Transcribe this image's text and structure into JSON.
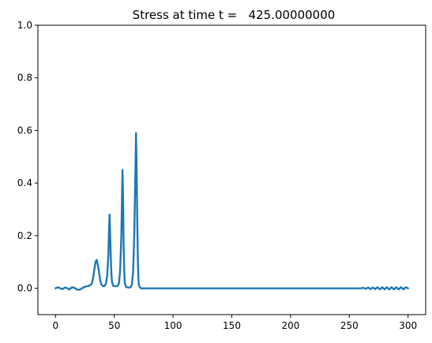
{
  "chart_data": {
    "type": "line",
    "title": "Stress at time t =   425.00000000",
    "xlabel": "",
    "ylabel": "",
    "xlim": [
      -15,
      315
    ],
    "ylim": [
      -0.1,
      1.0
    ],
    "grid": false,
    "x_ticks": [
      {
        "value": 0,
        "label": "0"
      },
      {
        "value": 50,
        "label": "50"
      },
      {
        "value": 100,
        "label": "100"
      },
      {
        "value": 150,
        "label": "150"
      },
      {
        "value": 200,
        "label": "200"
      },
      {
        "value": 250,
        "label": "250"
      },
      {
        "value": 300,
        "label": "300"
      }
    ],
    "y_ticks": [
      {
        "value": 0.0,
        "label": "0.0"
      },
      {
        "value": 0.2,
        "label": "0.2"
      },
      {
        "value": 0.4,
        "label": "0.4"
      },
      {
        "value": 0.6,
        "label": "0.6"
      },
      {
        "value": 0.8,
        "label": "0.8"
      },
      {
        "value": 1.0,
        "label": "1.0"
      }
    ],
    "series": [
      {
        "color": "#1f77b4",
        "x": [
          0,
          2,
          4,
          6,
          8,
          10,
          12,
          14,
          16,
          18,
          20,
          22,
          24,
          26,
          28,
          30,
          31,
          32,
          33,
          34,
          35,
          36,
          37,
          38,
          39,
          40,
          41,
          42,
          43,
          44,
          45,
          45.5,
          46,
          46.5,
          47,
          47.5,
          48,
          49,
          50,
          51,
          52,
          53,
          54,
          55,
          56,
          56.5,
          57,
          57.5,
          58,
          58.5,
          59,
          60,
          61,
          62,
          63,
          64,
          65,
          66,
          67,
          68,
          68.5,
          69,
          69.5,
          70,
          70.5,
          71,
          72,
          73,
          75,
          80,
          100,
          150,
          200,
          250,
          260,
          262,
          264,
          266,
          268,
          270,
          272,
          274,
          276,
          278,
          280,
          282,
          284,
          286,
          288,
          290,
          292,
          294,
          296,
          298,
          300
        ],
        "y": [
          0.0,
          0.004,
          0.0,
          -0.003,
          0.003,
          0.0,
          -0.004,
          0.004,
          0.002,
          -0.004,
          -0.006,
          -0.002,
          0.004,
          0.007,
          0.009,
          0.013,
          0.02,
          0.04,
          0.07,
          0.1,
          0.108,
          0.09,
          0.06,
          0.03,
          0.015,
          0.01,
          0.008,
          0.01,
          0.02,
          0.05,
          0.13,
          0.22,
          0.28,
          0.2,
          0.12,
          0.06,
          0.025,
          0.01,
          0.008,
          0.008,
          0.008,
          0.01,
          0.02,
          0.07,
          0.2,
          0.32,
          0.45,
          0.34,
          0.15,
          0.06,
          0.02,
          0.005,
          0.004,
          0.003,
          0.003,
          0.005,
          0.015,
          0.06,
          0.2,
          0.45,
          0.59,
          0.46,
          0.28,
          0.12,
          0.04,
          0.01,
          0.002,
          0.0,
          0.0,
          0.0,
          0.0,
          0.0,
          0.0,
          0.0,
          0.0,
          0.002,
          -0.002,
          0.003,
          -0.003,
          0.003,
          -0.003,
          0.004,
          -0.004,
          0.004,
          -0.004,
          0.004,
          -0.004,
          0.004,
          -0.004,
          0.004,
          -0.004,
          0.004,
          -0.004,
          0.004,
          0.0
        ]
      }
    ]
  }
}
